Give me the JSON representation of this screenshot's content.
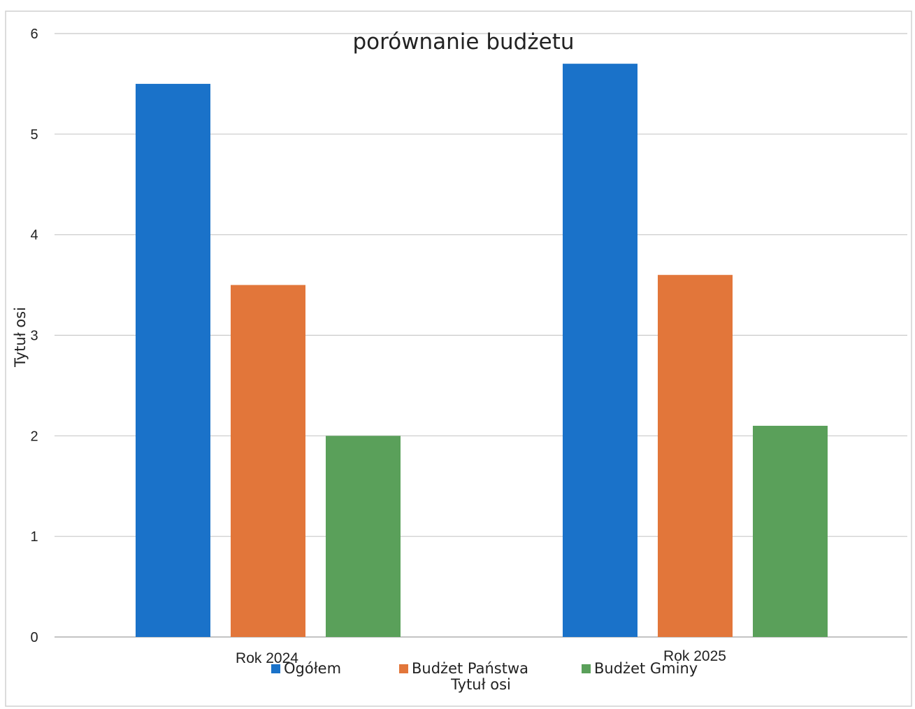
{
  "chart_data": {
    "type": "bar",
    "title": "porównanie budżetu",
    "xlabel": "Tytuł osi",
    "ylabel": "Tytuł osi",
    "categories": [
      "Rok 2024",
      "Rok 2025"
    ],
    "series": [
      {
        "name": "Ogółem",
        "values": [
          5.5,
          5.7
        ],
        "color": "#1a72c9"
      },
      {
        "name": "Budżet Państwa",
        "values": [
          3.5,
          3.6
        ],
        "color": "#e2763a"
      },
      {
        "name": "Budżet Gminy",
        "values": [
          2.0,
          2.1
        ],
        "color": "#5aa05a"
      }
    ],
    "ylim": [
      0,
      6
    ],
    "yticks": [
      "0",
      "1",
      "2",
      "3",
      "4",
      "5",
      "6"
    ],
    "grid": true,
    "legend_position": "bottom"
  }
}
